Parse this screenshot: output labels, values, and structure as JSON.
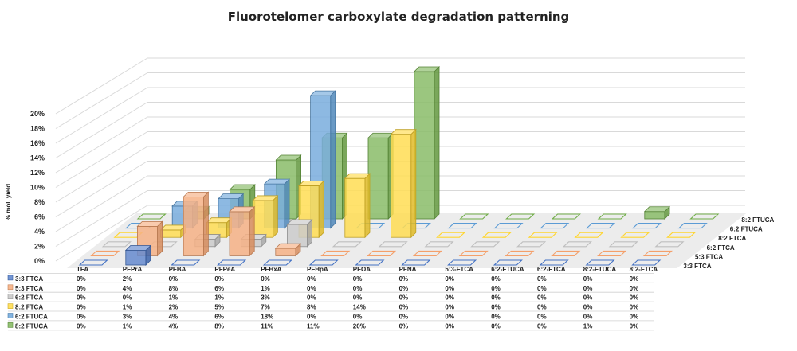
{
  "chart_data": {
    "type": "bar",
    "subtype": "3d-clustered-bar-with-data-table",
    "title": "Fluorotelomer carboxylate degradation patterning",
    "ylabel": "% mol. yield",
    "xlabel": "",
    "ylim": [
      0,
      20
    ],
    "yticks": [
      "0%",
      "2%",
      "4%",
      "6%",
      "8%",
      "10%",
      "12%",
      "14%",
      "16%",
      "18%",
      "20%"
    ],
    "categories": [
      "TFA",
      "PFPrA",
      "PFBA",
      "PFPeA",
      "PFHxA",
      "PFHpA",
      "PFOA",
      "PFNA",
      "5:3-FTCA",
      "6:2-FTUCA",
      "6:2-FTCA",
      "8:2-FTUCA",
      "8:2-FTCA"
    ],
    "series": [
      {
        "name": "3:3 FTCA",
        "color": "#4472C4",
        "values": [
          0,
          2,
          0,
          0,
          0,
          0,
          0,
          0,
          0,
          0,
          0,
          0,
          0
        ],
        "labels": [
          "0%",
          "2%",
          "0%",
          "0%",
          "0%",
          "0%",
          "0%",
          "0%",
          "0%",
          "0%",
          "0%",
          "0%",
          "0%"
        ]
      },
      {
        "name": "5:3 FTCA",
        "color": "#F4A06B",
        "values": [
          0,
          4,
          8,
          6,
          1,
          0,
          0,
          0,
          0,
          0,
          0,
          0,
          0
        ],
        "labels": [
          "0%",
          "4%",
          "8%",
          "6%",
          "1%",
          "0%",
          "0%",
          "0%",
          "0%",
          "0%",
          "0%",
          "0%",
          "0%"
        ]
      },
      {
        "name": "6:2 FTCA",
        "color": "#BFBFBF",
        "values": [
          0,
          0,
          1,
          1,
          3,
          0,
          0,
          0,
          0,
          0,
          0,
          0,
          0
        ],
        "labels": [
          "0%",
          "0%",
          "1%",
          "1%",
          "3%",
          "0%",
          "0%",
          "0%",
          "0%",
          "0%",
          "0%",
          "0%",
          "0%"
        ]
      },
      {
        "name": "8:2 FTCA",
        "color": "#FFD52E",
        "values": [
          0,
          1,
          2,
          5,
          7,
          8,
          14,
          0,
          0,
          0,
          0,
          0,
          0
        ],
        "labels": [
          "0%",
          "1%",
          "2%",
          "5%",
          "7%",
          "8%",
          "14%",
          "0%",
          "0%",
          "0%",
          "0%",
          "0%",
          "0%"
        ]
      },
      {
        "name": "6:2 FTUCA",
        "color": "#5B9BD5",
        "values": [
          0,
          3,
          4,
          6,
          18,
          0,
          0,
          0,
          0,
          0,
          0,
          0,
          0
        ],
        "labels": [
          "0%",
          "3%",
          "4%",
          "6%",
          "18%",
          "0%",
          "0%",
          "0%",
          "0%",
          "0%",
          "0%",
          "0%",
          "0%"
        ]
      },
      {
        "name": "8:2 FTUCA",
        "color": "#70AD47",
        "values": [
          0,
          1,
          4,
          8,
          11,
          11,
          20,
          0,
          0,
          0,
          0,
          1,
          0
        ],
        "labels": [
          "0%",
          "1%",
          "4%",
          "8%",
          "11%",
          "11%",
          "20%",
          "0%",
          "0%",
          "0%",
          "0%",
          "1%",
          "0%"
        ]
      }
    ],
    "depth_labels": [
      "8:2 FTUCA",
      "6:2 FTUCA",
      "8:2 FTCA",
      "6:2 FTCA",
      "5:3 FTCA",
      "3:3 FTCA"
    ],
    "grid": true,
    "legend": "data-table-below"
  }
}
